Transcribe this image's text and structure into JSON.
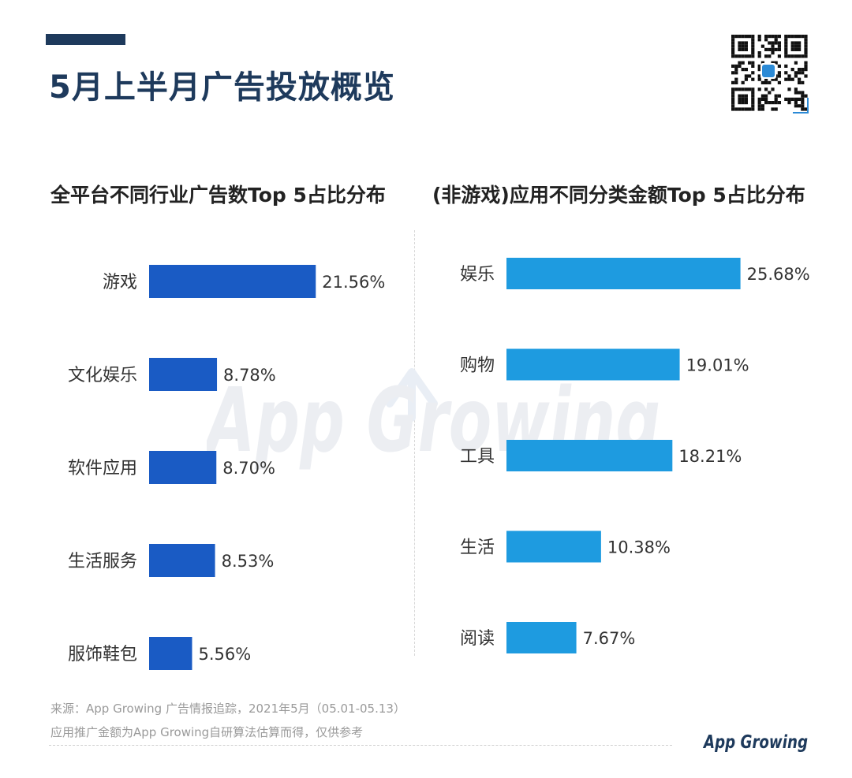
{
  "page": {
    "title": "5月上半月广告投放概览"
  },
  "colors": {
    "title_navy": "#1e3a5c",
    "left_bar": "#1a5bc4",
    "right_bar": "#1e9be0"
  },
  "brand": {
    "logo_text": "App Growing",
    "watermark_text": "App Growing"
  },
  "chart_data": [
    {
      "type": "bar",
      "orientation": "horizontal",
      "title": "全平台不同行业广告数Top 5占比分布",
      "categories": [
        "游戏",
        "文化娱乐",
        "软件应用",
        "生活服务",
        "服饰鞋包"
      ],
      "values": [
        21.56,
        8.78,
        8.7,
        8.53,
        5.56
      ],
      "value_labels": [
        "21.56%",
        "8.78%",
        "8.70%",
        "8.53%",
        "5.56%"
      ],
      "unit": "%",
      "color": "#1a5bc4",
      "grid": false
    },
    {
      "type": "bar",
      "orientation": "horizontal",
      "title": "(非游戏)应用不同分类金额Top 5占比分布",
      "categories": [
        "娱乐",
        "购物",
        "工具",
        "生活",
        "阅读"
      ],
      "values": [
        25.68,
        19.01,
        18.21,
        10.38,
        7.67
      ],
      "value_labels": [
        "25.68%",
        "19.01%",
        "18.21%",
        "10.38%",
        "7.67%"
      ],
      "unit": "%",
      "color": "#1e9be0",
      "grid": false
    }
  ],
  "footer": {
    "source": "来源：App Growing 广告情报追踪，2021年5月（05.01-05.13）",
    "note": "应用推广金额为App Growing自研算法估算而得，仅供参考"
  }
}
